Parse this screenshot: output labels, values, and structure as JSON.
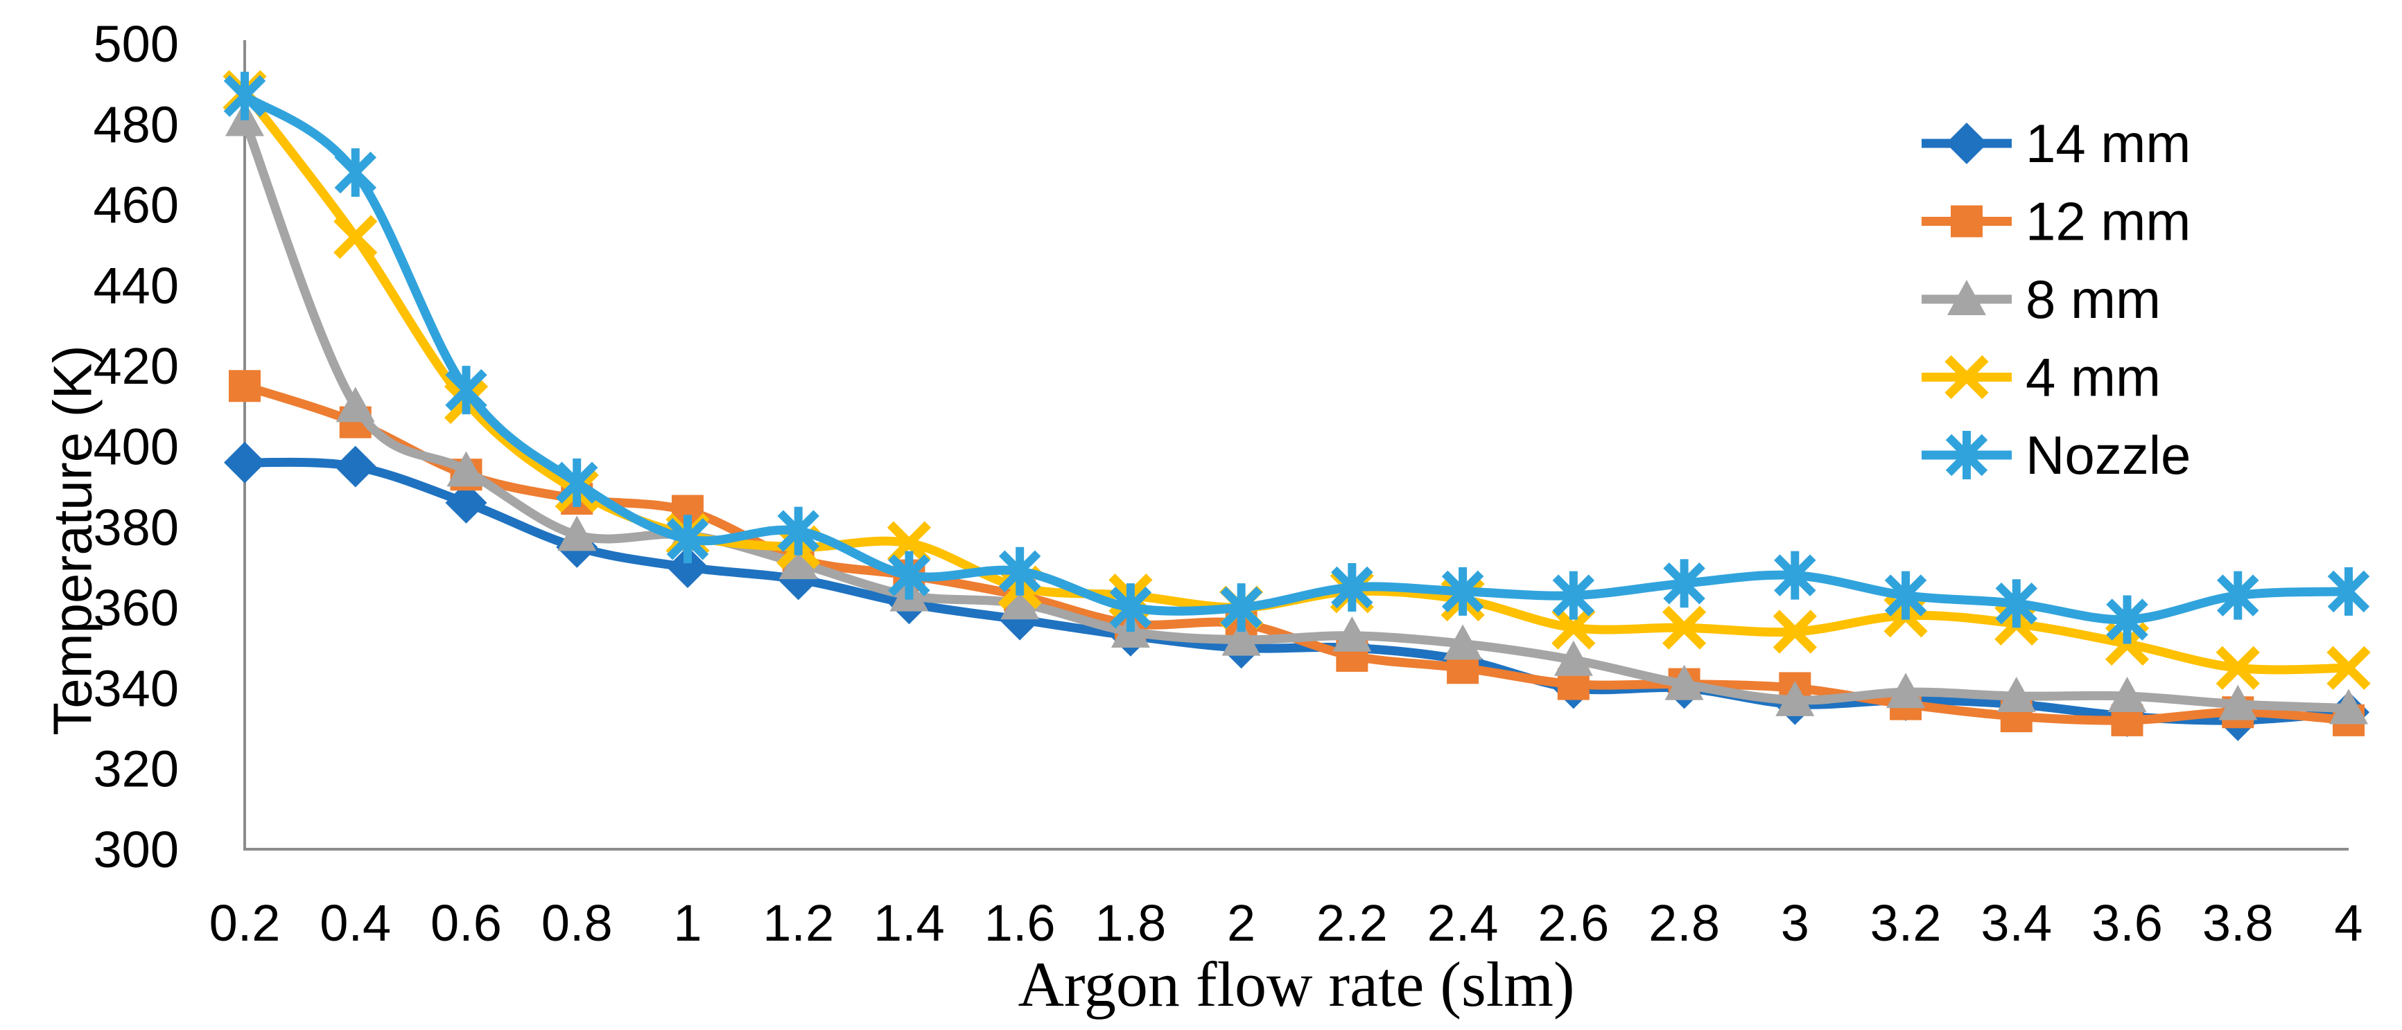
{
  "chart_data": {
    "type": "line",
    "title": "",
    "xlabel": "Argon flow rate (slm)",
    "ylabel": "Temperature (K)",
    "ylim": [
      300,
      500
    ],
    "y_tick_step": 20,
    "grid": false,
    "legend_position": "top-right",
    "axis_color": "#8C8C8C",
    "x_categories": [
      "0.2",
      "0.4",
      "0.6",
      "0.8",
      "1",
      "1.2",
      "1.4",
      "1.6",
      "1.8",
      "2",
      "2.2",
      "2.4",
      "2.6",
      "2.8",
      "3",
      "3.2",
      "3.4",
      "3.6",
      "3.8",
      "4"
    ],
    "y_ticks": [
      "500",
      "480",
      "460",
      "440",
      "420",
      "400",
      "380",
      "360",
      "340",
      "320",
      "300"
    ],
    "series": [
      {
        "name": "14 mm",
        "marker": "diamond",
        "color": "#1F72C0",
        "values": [
          396,
          395,
          386,
          375,
          370,
          367,
          361,
          357,
          353,
          350,
          350,
          347,
          340,
          340,
          336,
          337,
          336,
          333,
          332,
          334
        ]
      },
      {
        "name": "12 mm",
        "marker": "square",
        "color": "#ED7D31",
        "values": [
          415,
          406,
          393,
          387,
          384,
          372,
          368,
          363,
          356,
          356,
          348,
          345,
          341,
          341,
          340,
          336,
          333,
          332,
          334,
          332
        ]
      },
      {
        "name": "8 mm",
        "marker": "triangle",
        "color": "#A5A5A5",
        "values": [
          481,
          410,
          394,
          378,
          378,
          371,
          363,
          361,
          354,
          352,
          353,
          351,
          347,
          341,
          337,
          339,
          338,
          338,
          336,
          335
        ]
      },
      {
        "name": "4 mm",
        "marker": "x",
        "color": "#FFC000",
        "values": [
          488,
          452,
          411,
          389,
          378,
          375,
          376,
          365,
          363,
          360,
          364,
          362,
          355,
          355,
          354,
          358,
          356,
          351,
          345,
          345
        ]
      },
      {
        "name": "Nozzle",
        "marker": "asterisk",
        "color": "#31A3DC",
        "values": [
          487,
          468,
          414,
          391,
          377,
          379,
          368,
          369,
          360,
          360,
          365,
          364,
          363,
          366,
          368,
          363,
          361,
          357,
          363,
          364
        ]
      }
    ]
  }
}
